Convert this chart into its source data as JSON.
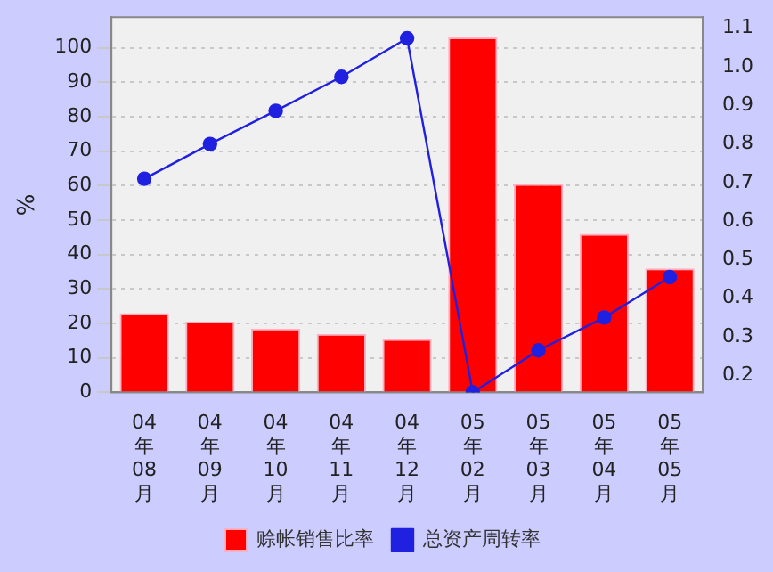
{
  "chart_data": {
    "type": "bar",
    "ylabel": "%",
    "categories": [
      "04年08月",
      "04年09月",
      "04年10月",
      "04年11月",
      "04年12月",
      "05年02月",
      "05年03月",
      "05年04月",
      "05年05月"
    ],
    "series": [
      {
        "name": "赊帐销售比率",
        "color": "#ff0000",
        "values": [
          23,
          20.5,
          18.5,
          17,
          15.5,
          103,
          60.5,
          46,
          36
        ]
      },
      {
        "name": "总资产周转率",
        "type": "line",
        "axis": "y2",
        "color": "#2020e0",
        "values": [
          0.71,
          0.8,
          0.886,
          0.974,
          1.074,
          0.156,
          0.265,
          0.35,
          0.455
        ]
      }
    ],
    "ylim": [
      0,
      108.9
    ],
    "yticks": [
      0,
      10,
      20,
      30,
      40,
      50,
      60,
      70,
      80,
      90,
      100
    ],
    "y2lim": [
      0.156,
      1.129
    ],
    "y2ticks": [
      0.2,
      0.3,
      0.4,
      0.5,
      0.6,
      0.7,
      0.8,
      0.9,
      {
        "value": 1,
        "label": "1.0"
      },
      1.1
    ],
    "grid": "y",
    "legend": "bottom",
    "marker": "circle",
    "line_style": "solid"
  }
}
